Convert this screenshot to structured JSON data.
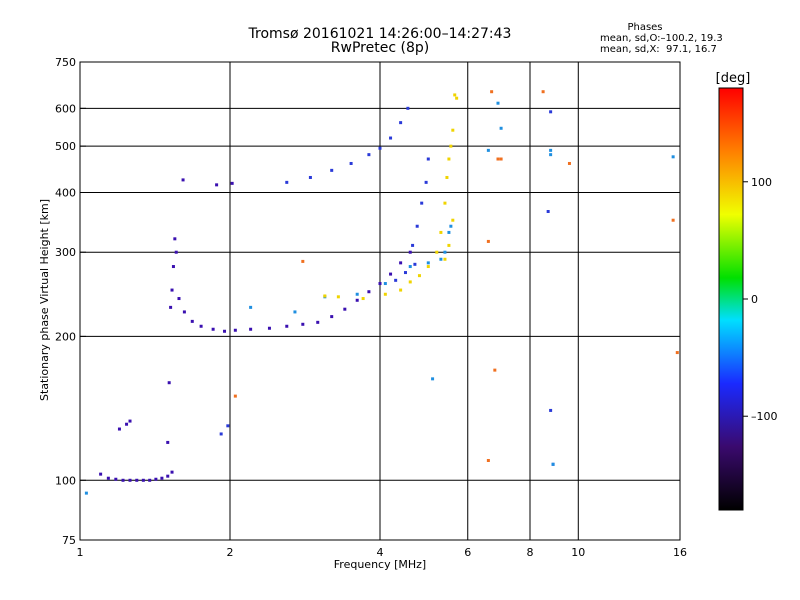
{
  "header": {
    "title_line1": "Tromsø 20161021 14:26:00–14:27:43",
    "title_line2": "RwPretec (8p)",
    "phases_label": "Phases",
    "phases_o": "mean, sd,O:–100.2, 19.3",
    "phases_x": "mean, sd,X:  97.1, 16.7"
  },
  "chart_data": {
    "type": "scatter",
    "xlabel": "Frequency [MHz]",
    "ylabel": "Stationary phase Virtual Height [km]",
    "x_scale": "log",
    "y_scale": "log",
    "xlim": [
      1,
      16
    ],
    "ylim": [
      75,
      750
    ],
    "x_ticks": [
      1,
      2,
      4,
      6,
      8,
      10,
      16
    ],
    "x_tick_labels": [
      "1",
      "2",
      "4",
      "6",
      "8",
      "10",
      "16"
    ],
    "y_ticks": [
      75,
      100,
      200,
      300,
      400,
      500,
      600,
      750
    ],
    "y_tick_labels": [
      "75",
      "100",
      "200",
      "300",
      "400",
      "500",
      "600",
      "750"
    ],
    "grid": true,
    "colorbar": {
      "label": "[deg]",
      "range": [
        -180,
        180
      ],
      "ticks": [
        -100,
        0,
        100
      ],
      "tick_labels": [
        "–100",
        "0",
        "100"
      ]
    },
    "series": [
      {
        "color": "#3a10b0",
        "points": [
          [
            1.1,
            103
          ],
          [
            1.14,
            101
          ],
          [
            1.18,
            100.5
          ],
          [
            1.22,
            100
          ],
          [
            1.26,
            100
          ],
          [
            1.3,
            100
          ],
          [
            1.34,
            100
          ],
          [
            1.38,
            100
          ],
          [
            1.42,
            100.5
          ],
          [
            1.46,
            101
          ],
          [
            1.5,
            102
          ],
          [
            1.53,
            104
          ],
          [
            1.2,
            128
          ],
          [
            1.24,
            131
          ],
          [
            1.26,
            133
          ],
          [
            1.5,
            120
          ],
          [
            1.51,
            160
          ],
          [
            1.52,
            230
          ],
          [
            1.53,
            250
          ],
          [
            1.54,
            280
          ],
          [
            1.55,
            320
          ],
          [
            1.56,
            300
          ],
          [
            1.58,
            240
          ],
          [
            1.62,
            225
          ],
          [
            1.68,
            215
          ],
          [
            1.75,
            210
          ],
          [
            1.85,
            207
          ],
          [
            1.95,
            205
          ],
          [
            2.05,
            206
          ],
          [
            2.2,
            207
          ],
          [
            2.4,
            208
          ],
          [
            2.6,
            210
          ],
          [
            2.8,
            212
          ],
          [
            3.0,
            214
          ],
          [
            3.2,
            220
          ],
          [
            3.4,
            228
          ],
          [
            3.6,
            238
          ],
          [
            3.8,
            248
          ],
          [
            4.0,
            258
          ],
          [
            4.2,
            270
          ],
          [
            4.4,
            285
          ],
          [
            4.6,
            300
          ],
          [
            1.61,
            425
          ],
          [
            1.88,
            415
          ],
          [
            2.02,
            418
          ]
        ]
      },
      {
        "color": "#2a3ad8",
        "points": [
          [
            2.6,
            420
          ],
          [
            2.9,
            430
          ],
          [
            3.2,
            445
          ],
          [
            3.5,
            460
          ],
          [
            3.8,
            480
          ],
          [
            4.0,
            495
          ],
          [
            4.2,
            520
          ],
          [
            4.4,
            560
          ],
          [
            4.55,
            600
          ],
          [
            4.65,
            310
          ],
          [
            4.75,
            340
          ],
          [
            4.85,
            380
          ],
          [
            4.95,
            420
          ],
          [
            5.0,
            470
          ],
          [
            4.3,
            262
          ],
          [
            4.5,
            272
          ],
          [
            4.7,
            283
          ],
          [
            1.92,
            125
          ],
          [
            1.98,
            130
          ],
          [
            8.8,
            590
          ],
          [
            8.8,
            140
          ],
          [
            8.9,
            108
          ],
          [
            8.7,
            365
          ]
        ]
      },
      {
        "color": "#1f8fe0",
        "points": [
          [
            2.2,
            230
          ],
          [
            2.7,
            225
          ],
          [
            3.1,
            242
          ],
          [
            3.6,
            245
          ],
          [
            4.1,
            258
          ],
          [
            4.6,
            280
          ],
          [
            5.0,
            285
          ],
          [
            5.3,
            290
          ],
          [
            5.4,
            300
          ],
          [
            5.5,
            330
          ],
          [
            5.55,
            340
          ],
          [
            1.03,
            94
          ],
          [
            5.1,
            163
          ],
          [
            8.8,
            490
          ],
          [
            8.8,
            480
          ],
          [
            8.9,
            108
          ],
          [
            6.6,
            490
          ],
          [
            6.9,
            615
          ],
          [
            7.0,
            545
          ],
          [
            15.5,
            475
          ]
        ]
      },
      {
        "color": "#f0d400",
        "points": [
          [
            3.1,
            243
          ],
          [
            3.3,
            242
          ],
          [
            3.7,
            240
          ],
          [
            4.1,
            245
          ],
          [
            4.4,
            250
          ],
          [
            4.6,
            260
          ],
          [
            4.8,
            268
          ],
          [
            5.0,
            280
          ],
          [
            5.2,
            300
          ],
          [
            5.3,
            330
          ],
          [
            5.4,
            380
          ],
          [
            5.45,
            430
          ],
          [
            5.5,
            470
          ],
          [
            5.55,
            500
          ],
          [
            5.6,
            540
          ],
          [
            5.65,
            640
          ],
          [
            5.7,
            630
          ],
          [
            5.4,
            290
          ],
          [
            5.5,
            310
          ],
          [
            5.6,
            350
          ]
        ]
      },
      {
        "color": "#f07020",
        "points": [
          [
            2.8,
            287
          ],
          [
            6.6,
            316
          ],
          [
            6.7,
            650
          ],
          [
            6.9,
            470
          ],
          [
            7.0,
            470
          ],
          [
            6.6,
            110
          ],
          [
            6.8,
            170
          ],
          [
            8.5,
            650
          ],
          [
            9.6,
            460
          ],
          [
            15.8,
            185
          ],
          [
            15.5,
            350
          ],
          [
            2.05,
            150
          ]
        ]
      }
    ]
  }
}
